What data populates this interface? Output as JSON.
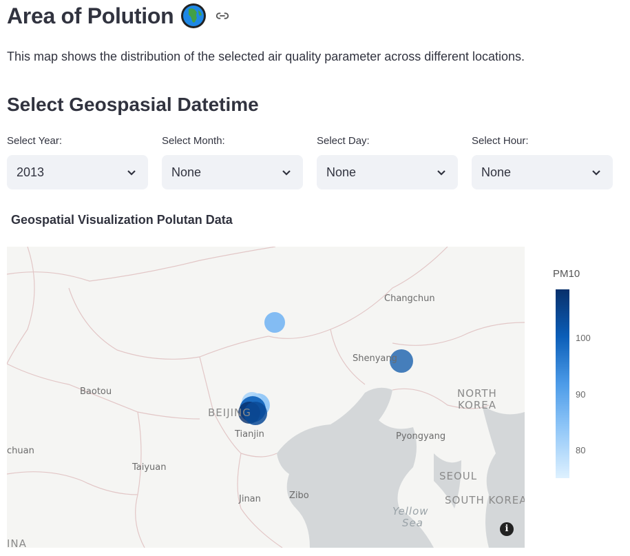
{
  "header": {
    "title": "Area of Polution",
    "description": "This map shows the distribution of the selected air quality parameter across different locations."
  },
  "section": {
    "title": "Select Geospasial Datetime"
  },
  "selects": [
    {
      "label": "Select Year:",
      "value": "2013"
    },
    {
      "label": "Select Month:",
      "value": "None"
    },
    {
      "label": "Select Day:",
      "value": "None"
    },
    {
      "label": "Select Hour:",
      "value": "None"
    }
  ],
  "viz": {
    "title": "Geospatial Visualization Polutan Data"
  },
  "map": {
    "places": [
      "Changchun",
      "Shenyang",
      "Baotou",
      "BEIJING",
      "Tianjin",
      "NORTH",
      "KOREA",
      "Pyongyang",
      "chuan",
      "Taiyuan",
      "SEOUL",
      "Jinan",
      "Zibo",
      "SOUTH KOREA",
      "Yellow",
      "Sea",
      "INA"
    ]
  },
  "colorbar": {
    "title": "PM10",
    "ticks": [
      "100",
      "90",
      "80"
    ]
  },
  "colors": {
    "accent_dark": "#08306b",
    "accent_mid": "#4c9be8",
    "water": "#d4d7d9",
    "land": "#f5f5f3"
  }
}
